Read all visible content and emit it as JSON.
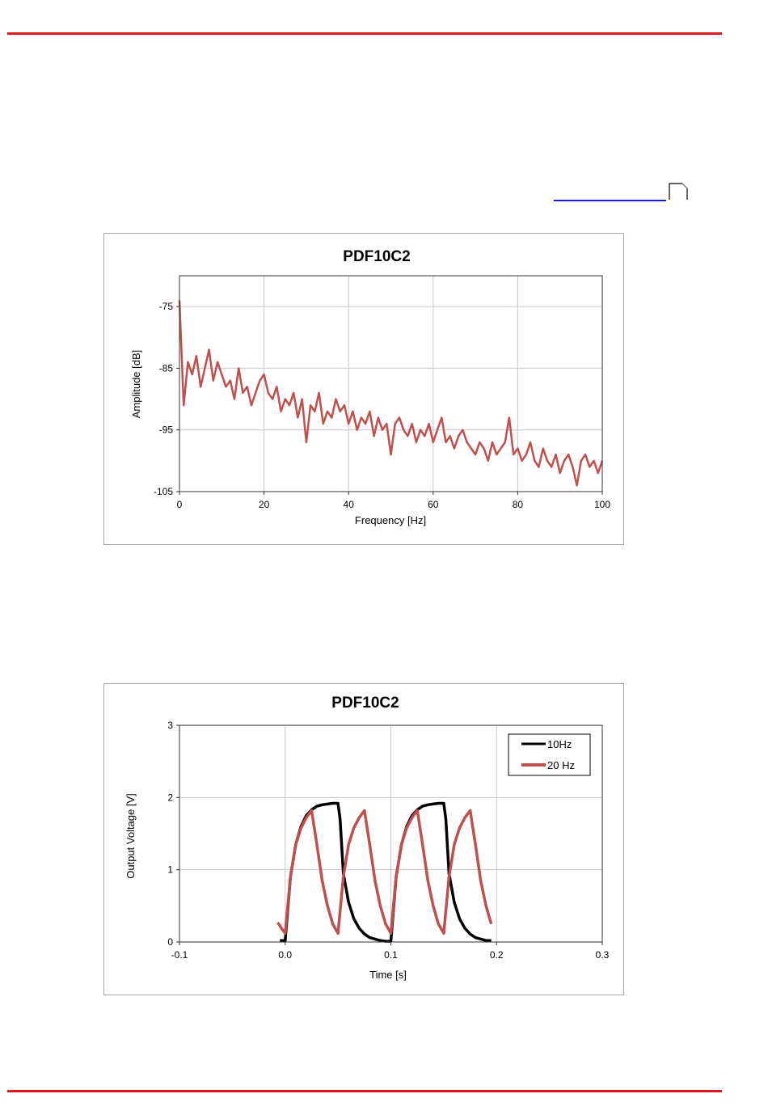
{
  "colors": {
    "rule": "#e0161b",
    "link": "#1a1ae6",
    "series_red": "#c0504d",
    "series_black": "#000000"
  },
  "chart_data": [
    {
      "type": "line",
      "title": "PDF10C2",
      "xlabel": "Frequency [Hz]",
      "ylabel": "Amplitude [dB]",
      "xlim": [
        0,
        100
      ],
      "ylim": [
        -105,
        -70
      ],
      "xticks": [
        0,
        20,
        40,
        60,
        80,
        100
      ],
      "yticks": [
        -105,
        -95,
        -85,
        -75
      ],
      "grid": true,
      "legend": "none",
      "series": [
        {
          "name": "Amplitude",
          "color": "#c0504d",
          "x_start": 0,
          "x_step": 1,
          "values": [
            -74,
            -91,
            -84,
            -86,
            -83,
            -88,
            -85,
            -82,
            -87,
            -84,
            -86,
            -88,
            -87,
            -90,
            -85,
            -89,
            -88,
            -91,
            -89,
            -87,
            -86,
            -89,
            -90,
            -88,
            -92,
            -90,
            -91,
            -89,
            -93,
            -90,
            -97,
            -91,
            -92,
            -89,
            -94,
            -92,
            -93,
            -90,
            -92,
            -91,
            -94,
            -92,
            -95,
            -93,
            -94,
            -92,
            -96,
            -93,
            -95,
            -94,
            -99,
            -94,
            -93,
            -95,
            -96,
            -94,
            -97,
            -95,
            -96,
            -94,
            -97,
            -95,
            -93,
            -97,
            -96,
            -98,
            -96,
            -95,
            -97,
            -98,
            -99,
            -97,
            -98,
            -100,
            -97,
            -99,
            -98,
            -97,
            -93,
            -99,
            -98,
            -100,
            -99,
            -97,
            -100,
            -101,
            -98,
            -100,
            -101,
            -99,
            -102,
            -100,
            -99,
            -101,
            -104,
            -100,
            -99,
            -101,
            -100,
            -102,
            -100
          ]
        }
      ]
    },
    {
      "type": "line",
      "title": "PDF10C2",
      "xlabel": "Time [s]",
      "ylabel": "Output Voltage [V]",
      "xlim": [
        -0.1,
        0.3
      ],
      "ylim": [
        0,
        3
      ],
      "xticks": [
        "-0.1",
        "0.0",
        "0.1",
        "0.2",
        "0.3"
      ],
      "yticks": [
        "0",
        "1",
        "2",
        "3"
      ],
      "grid": true,
      "legend": "top-right",
      "series": [
        {
          "name": "10Hz",
          "color": "#000000",
          "x": [
            -0.005,
            0,
            0.005,
            0.01,
            0.015,
            0.02,
            0.025,
            0.03,
            0.035,
            0.04,
            0.045,
            0.05,
            0.052,
            0.055,
            0.06,
            0.065,
            0.07,
            0.075,
            0.08,
            0.085,
            0.09,
            0.095,
            0.1,
            0.105,
            0.11,
            0.115,
            0.12,
            0.125,
            0.13,
            0.135,
            0.14,
            0.145,
            0.15,
            0.152,
            0.155,
            0.16,
            0.165,
            0.17,
            0.175,
            0.18,
            0.185,
            0.19,
            0.195
          ],
          "y": [
            0.02,
            0.02,
            0.9,
            1.35,
            1.6,
            1.75,
            1.83,
            1.88,
            1.9,
            1.91,
            1.92,
            1.92,
            1.7,
            0.95,
            0.55,
            0.32,
            0.19,
            0.11,
            0.06,
            0.04,
            0.02,
            0.01,
            0.01,
            0.9,
            1.35,
            1.6,
            1.75,
            1.83,
            1.88,
            1.9,
            1.91,
            1.92,
            1.92,
            1.7,
            0.95,
            0.55,
            0.32,
            0.19,
            0.11,
            0.06,
            0.04,
            0.02,
            0.02
          ]
        },
        {
          "name": "20 Hz",
          "color": "#c0504d",
          "x": [
            -0.007,
            -0.003,
            0,
            0.005,
            0.01,
            0.015,
            0.02,
            0.025,
            0.03,
            0.035,
            0.04,
            0.045,
            0.05,
            0.055,
            0.06,
            0.065,
            0.07,
            0.075,
            0.08,
            0.085,
            0.09,
            0.095,
            0.1,
            0.105,
            0.11,
            0.115,
            0.12,
            0.125,
            0.13,
            0.135,
            0.14,
            0.145,
            0.15,
            0.155,
            0.16,
            0.165,
            0.17,
            0.175,
            0.18,
            0.185,
            0.19,
            0.195
          ],
          "y": [
            0.27,
            0.18,
            0.12,
            0.9,
            1.35,
            1.58,
            1.72,
            1.82,
            1.35,
            0.85,
            0.5,
            0.25,
            0.12,
            0.9,
            1.35,
            1.58,
            1.72,
            1.82,
            1.35,
            0.85,
            0.5,
            0.25,
            0.12,
            0.9,
            1.35,
            1.58,
            1.72,
            1.82,
            1.35,
            0.85,
            0.5,
            0.25,
            0.12,
            0.9,
            1.35,
            1.58,
            1.72,
            1.82,
            1.35,
            0.85,
            0.5,
            0.25
          ]
        }
      ]
    }
  ]
}
